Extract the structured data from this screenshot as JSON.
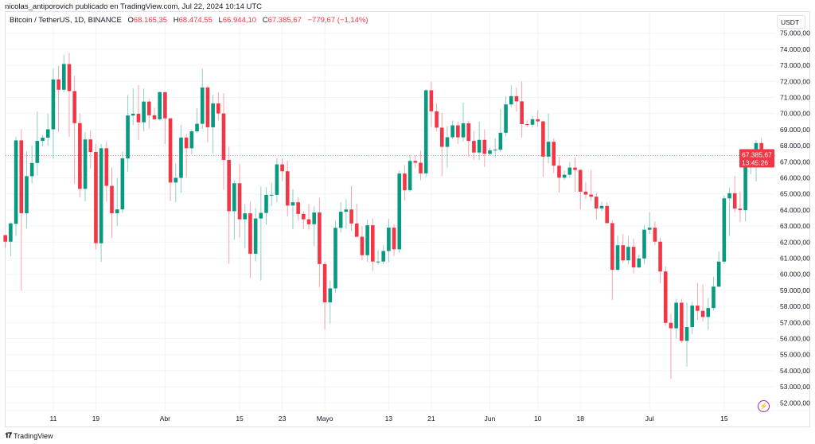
{
  "publisher_line": "nicolas_antiporovich publicado en TradingView.com, Jul 22, 2024 10:14 UTC",
  "symbol": "Bitcoin / TetherUS, 1D, BINANCE",
  "ohlc": {
    "o_label": "O",
    "o": "68.165,35",
    "h_label": "H",
    "h": "68.474,55",
    "l_label": "L",
    "l": "66.944,10",
    "c_label": "C",
    "c": "67.385,67",
    "change": "−779,67 (−1,14%)"
  },
  "currency": "USDT",
  "last_price_label": "67.385,67",
  "countdown": "13:45:26",
  "footer_brand": "TradingView",
  "logo_mark": "17",
  "colors": {
    "up": "#089981",
    "down": "#f23645",
    "grid": "#f0f3fa"
  },
  "chart_data": {
    "type": "candlestick",
    "title": "Bitcoin / TetherUS, 1D, BINANCE",
    "start_date": "2024-03-02",
    "interval": "1D",
    "ylim": [
      51500,
      75500
    ],
    "last_price": 67385.67,
    "y_ticks": [
      75000,
      74000,
      73000,
      72000,
      71000,
      70000,
      69000,
      68000,
      67000,
      66000,
      65000,
      64000,
      63000,
      62000,
      61000,
      60000,
      59000,
      58000,
      57000,
      56000,
      55000,
      54000,
      53000,
      52000
    ],
    "y_tick_labels": [
      "75.000,00",
      "74.000,00",
      "73.000,00",
      "72.000,00",
      "71.000,00",
      "70.000,00",
      "69.000,00",
      "68.000,00",
      "67.000,00",
      "66.000,00",
      "65.000,00",
      "64.000,00",
      "63.000,00",
      "62.000,00",
      "61.000,00",
      "60.000,00",
      "59.000,00",
      "58.000,00",
      "57.000,00",
      "56.000,00",
      "55.000,00",
      "54.000,00",
      "53.000,00",
      "52.000,00"
    ],
    "x_ticks": [
      {
        "label": "11",
        "index": 9
      },
      {
        "label": "19",
        "index": 17
      },
      {
        "label": "Abr",
        "index": 30
      },
      {
        "label": "15",
        "index": 44
      },
      {
        "label": "23",
        "index": 52
      },
      {
        "label": "Mayo",
        "index": 60
      },
      {
        "label": "13",
        "index": 72
      },
      {
        "label": "21",
        "index": 80
      },
      {
        "label": "Jun",
        "index": 91
      },
      {
        "label": "10",
        "index": 100
      },
      {
        "label": "18",
        "index": 108
      },
      {
        "label": "Jul",
        "index": 121
      },
      {
        "label": "15",
        "index": 135
      }
    ],
    "ohlc": [
      [
        62431,
        62458,
        61660,
        62029
      ],
      [
        62029,
        63231,
        61122,
        63167
      ],
      [
        63137,
        68537,
        62386,
        68330
      ],
      [
        68330,
        69000,
        59005,
        63801
      ],
      [
        63795,
        67637,
        62848,
        66106
      ],
      [
        66099,
        67995,
        65655,
        66925
      ],
      [
        66925,
        70136,
        66150,
        68300
      ],
      [
        68300,
        68670,
        67950,
        68498
      ],
      [
        68500,
        69990,
        68000,
        69020
      ],
      [
        69020,
        72800,
        67194,
        72123
      ],
      [
        72125,
        72960,
        68845,
        71481
      ],
      [
        71482,
        73650,
        71333,
        73083
      ],
      [
        73079,
        73777,
        68555,
        71396
      ],
      [
        71396,
        72357,
        65630,
        69403
      ],
      [
        69403,
        70000,
        64780,
        65315
      ],
      [
        65315,
        68845,
        64545,
        68390
      ],
      [
        68390,
        68956,
        66564,
        67609
      ],
      [
        67609,
        68124,
        61555,
        61937
      ],
      [
        61930,
        68100,
        60775,
        67840
      ],
      [
        67840,
        68240,
        64529,
        65501
      ],
      [
        65501,
        66649,
        62260,
        63796
      ],
      [
        63796,
        65999,
        63000,
        64037
      ],
      [
        64037,
        67622,
        63825,
        67211
      ],
      [
        67211,
        71150,
        66385,
        69880
      ],
      [
        69880,
        71561,
        69280,
        69988
      ],
      [
        69988,
        71769,
        68359,
        69455
      ],
      [
        69455,
        71552,
        68904,
        70744
      ],
      [
        70744,
        70913,
        69076,
        69892
      ],
      [
        69892,
        70355,
        69601,
        69645
      ],
      [
        69645,
        71366,
        69562,
        71333
      ],
      [
        71333,
        71342,
        68110,
        69702
      ],
      [
        69702,
        69708,
        64550,
        65709
      ],
      [
        65709,
        66914,
        64493,
        66000
      ],
      [
        66000,
        69291,
        65064,
        68508
      ],
      [
        68508,
        68725,
        66011,
        67837
      ],
      [
        67837,
        69000,
        67465,
        68896
      ],
      [
        68896,
        70327,
        68796,
        69361
      ],
      [
        69361,
        72797,
        69043,
        71620
      ],
      [
        71620,
        71758,
        68210,
        69146
      ],
      [
        69146,
        71172,
        67518,
        70631
      ],
      [
        70631,
        71305,
        69567,
        70006
      ],
      [
        70006,
        71256,
        65254,
        67116
      ],
      [
        67116,
        67931,
        60660,
        63924
      ],
      [
        63924,
        65840,
        62134,
        65662
      ],
      [
        65662,
        66867,
        62275,
        63419
      ],
      [
        63419,
        64365,
        61600,
        63793
      ],
      [
        63793,
        64499,
        59768,
        61277
      ],
      [
        61277,
        64117,
        60803,
        63470
      ],
      [
        63470,
        65450,
        59600,
        63818
      ],
      [
        63818,
        65419,
        63090,
        64940
      ],
      [
        64940,
        65695,
        64237,
        64941
      ],
      [
        64941,
        67233,
        64500,
        66837
      ],
      [
        66837,
        67199,
        65800,
        66408
      ],
      [
        66408,
        67075,
        63589,
        64276
      ],
      [
        64276,
        65275,
        62783,
        64481
      ],
      [
        64481,
        64789,
        63322,
        63755
      ],
      [
        63755,
        63923,
        62793,
        63419
      ],
      [
        63419,
        64370,
        62781,
        63114
      ],
      [
        63114,
        64228,
        61765,
        63842
      ],
      [
        63842,
        64734,
        59191,
        60636
      ],
      [
        60636,
        60782,
        56552,
        58254
      ],
      [
        58254,
        59602,
        56937,
        59123
      ],
      [
        59123,
        63320,
        58848,
        62889
      ],
      [
        62889,
        64494,
        62599,
        63891
      ],
      [
        63891,
        64646,
        62822,
        64031
      ],
      [
        64031,
        65500,
        62700,
        63161
      ],
      [
        63161,
        64390,
        62250,
        62334
      ],
      [
        62334,
        62995,
        60866,
        61187
      ],
      [
        61187,
        63421,
        60769,
        63049
      ],
      [
        63049,
        63469,
        60187,
        60792
      ],
      [
        60792,
        61490,
        60600,
        60793
      ],
      [
        60793,
        61818,
        60632,
        61448
      ],
      [
        61448,
        63450,
        60750,
        62901
      ],
      [
        62901,
        63118,
        61142,
        61552
      ],
      [
        61552,
        66444,
        61330,
        66267
      ],
      [
        66267,
        66800,
        64600,
        65231
      ],
      [
        65231,
        67459,
        65119,
        67051
      ],
      [
        67051,
        67400,
        66600,
        66940
      ],
      [
        66940,
        67700,
        65857,
        66278
      ],
      [
        66278,
        71515,
        66060,
        71446
      ],
      [
        71446,
        71979,
        69162,
        70137
      ],
      [
        70137,
        70623,
        68900,
        69122
      ],
      [
        69122,
        70041,
        66100,
        67929
      ],
      [
        67929,
        69220,
        66622,
        68526
      ],
      [
        68526,
        69562,
        68400,
        69265
      ],
      [
        69265,
        69500,
        68111,
        68518
      ],
      [
        68518,
        70687,
        68250,
        69394
      ],
      [
        69394,
        69560,
        67300,
        68296
      ],
      [
        68296,
        68909,
        67120,
        67578
      ],
      [
        67578,
        69500,
        67118,
        68364
      ],
      [
        68364,
        69019,
        66670,
        67491
      ],
      [
        67491,
        67860,
        67387,
        67706
      ],
      [
        67706,
        68460,
        67257,
        67751
      ],
      [
        67751,
        70288,
        67612,
        68805
      ],
      [
        68805,
        71063,
        68567,
        70567
      ],
      [
        70567,
        71758,
        70383,
        71082
      ],
      [
        71082,
        71625,
        70119,
        70757
      ],
      [
        70757,
        71997,
        68500,
        69342
      ],
      [
        69342,
        69584,
        69180,
        69305
      ],
      [
        69305,
        69850,
        69125,
        69647
      ],
      [
        69647,
        70195,
        69172,
        69512
      ],
      [
        69512,
        69565,
        66051,
        67321
      ],
      [
        67321,
        69999,
        66902,
        68243
      ],
      [
        68243,
        68449,
        66304,
        66756
      ],
      [
        66756,
        67294,
        65078,
        66011
      ],
      [
        66011,
        66450,
        65870,
        66191
      ],
      [
        66191,
        66983,
        66000,
        66639
      ],
      [
        66639,
        67298,
        65130,
        66490
      ],
      [
        66490,
        66571,
        64060,
        65140
      ],
      [
        65140,
        65738,
        64693,
        64960
      ],
      [
        64960,
        66482,
        64560,
        64828
      ],
      [
        64828,
        65066,
        63379,
        64096
      ],
      [
        64096,
        64520,
        63929,
        64252
      ],
      [
        64252,
        64491,
        63180,
        63180
      ],
      [
        63180,
        63369,
        58402,
        60277
      ],
      [
        60277,
        62400,
        60239,
        61806
      ],
      [
        61806,
        62487,
        60712,
        60864
      ],
      [
        60864,
        62389,
        60606,
        61706
      ],
      [
        61706,
        62225,
        60063,
        60427
      ],
      [
        60427,
        61224,
        60383,
        60986
      ],
      [
        60986,
        63058,
        60632,
        62772
      ],
      [
        62772,
        63861,
        62497,
        62900
      ],
      [
        62900,
        63288,
        61806,
        62029
      ],
      [
        62029,
        62272,
        59419,
        60173
      ],
      [
        60173,
        60498,
        56771,
        56977
      ],
      [
        56977,
        57546,
        53485,
        56639
      ],
      [
        56639,
        58475,
        56014,
        58231
      ],
      [
        58231,
        58475,
        55724,
        55857
      ],
      [
        55857,
        58236,
        54260,
        56714
      ],
      [
        56714,
        58296,
        56289,
        58051
      ],
      [
        58051,
        59470,
        57157,
        57725
      ],
      [
        57725,
        59359,
        57050,
        57344
      ],
      [
        57344,
        58526,
        56542,
        57899
      ],
      [
        57899,
        59850,
        57756,
        59231
      ],
      [
        59231,
        61420,
        59200,
        60788
      ],
      [
        60788,
        64900,
        60632,
        64724
      ],
      [
        64724,
        65388,
        62378,
        65043
      ],
      [
        65043,
        66128,
        63854,
        64087
      ],
      [
        64087,
        65133,
        63238,
        63987
      ],
      [
        63987,
        67386,
        63300,
        66660
      ],
      [
        66660,
        67598,
        66222,
        67139
      ],
      [
        67139,
        68366,
        65777,
        68165
      ],
      [
        68165,
        68474,
        66944,
        67385
      ]
    ]
  }
}
